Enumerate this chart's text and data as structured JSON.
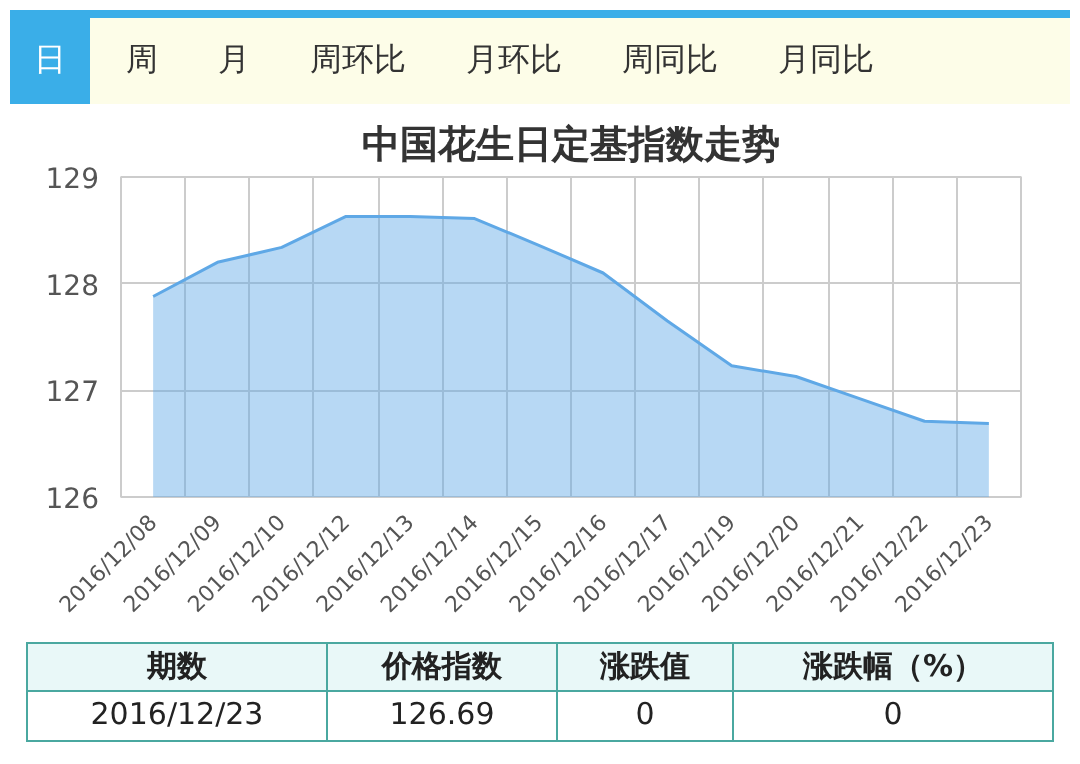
{
  "chart_data": {
    "type": "area",
    "title": "中国花生日定基指数走势",
    "categories": [
      "2016/12/08",
      "2016/12/09",
      "2016/12/10",
      "2016/12/12",
      "2016/12/13",
      "2016/12/14",
      "2016/12/15",
      "2016/12/16",
      "2016/12/17",
      "2016/12/19",
      "2016/12/20",
      "2016/12/21",
      "2016/12/22",
      "2016/12/23"
    ],
    "series": [
      {
        "color": "#5fa8e6",
        "values": [
          127.88,
          128.2,
          128.34,
          128.63,
          128.63,
          128.61,
          128.36,
          128.1,
          127.65,
          127.23,
          127.13,
          126.92,
          126.71,
          126.69
        ]
      }
    ],
    "ylim": [
      126,
      129
    ],
    "yticks": [
      126,
      127,
      128,
      129
    ],
    "grid": true,
    "annotations": [
      "日",
      "周",
      "月",
      "周环比",
      "月环比",
      "周同比",
      "月同比",
      "期数",
      "价格指数",
      "涨跌值",
      "涨跌幅（%）",
      "2016/12/23",
      "126.69",
      "0",
      "0"
    ]
  }
}
